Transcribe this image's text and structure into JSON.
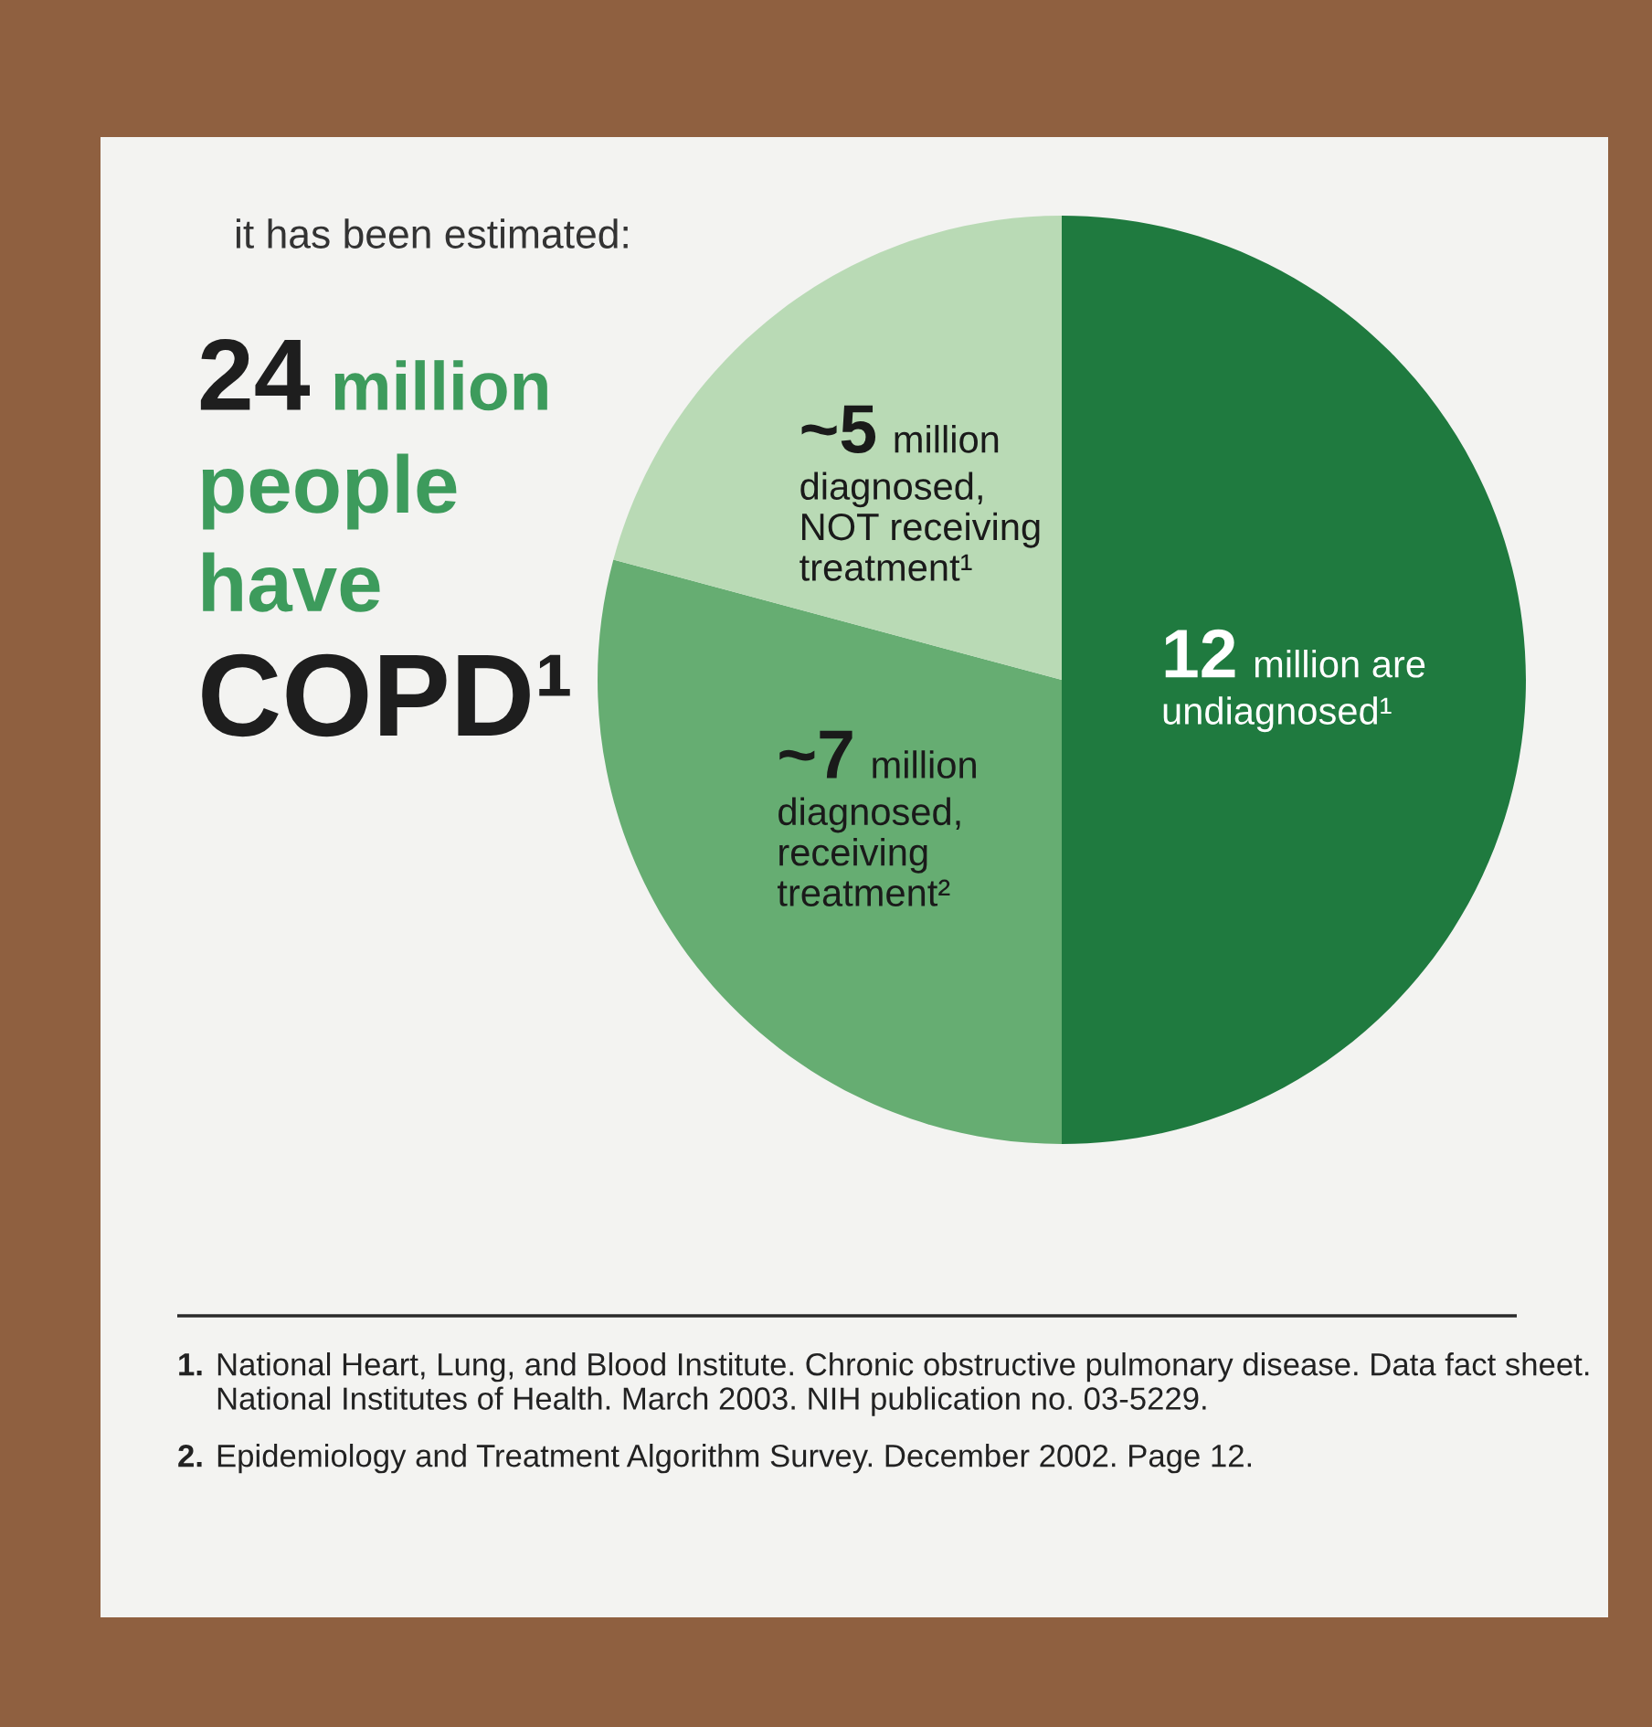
{
  "chart_data": {
    "type": "pie",
    "title": "it has been estimated:",
    "subtitle": "24 million\npeople\nhave\nCOPD¹",
    "categories": [
      "12 million are\nundiagnosed¹",
      "~7 million\ndiagnosed,\nreceiving\ntreatment²",
      "~5 million\ndiagnosed,\nNOT receiving\ntreatment¹"
    ],
    "values": [
      12,
      7,
      5
    ],
    "colors": [
      "#1f7a3f",
      "#66ad72",
      "#b9dab5"
    ],
    "annotations": [
      "1. National Heart, Lung, and Blood Institute. Chronic obstructive pulmonary disease. Data fact sheet. National Institutes of Health. March 2003. NIH publication no. 03-5229.",
      "2. Epidemiology and Treatment Algorithm Survey. December 2002. Page 12."
    ]
  }
}
